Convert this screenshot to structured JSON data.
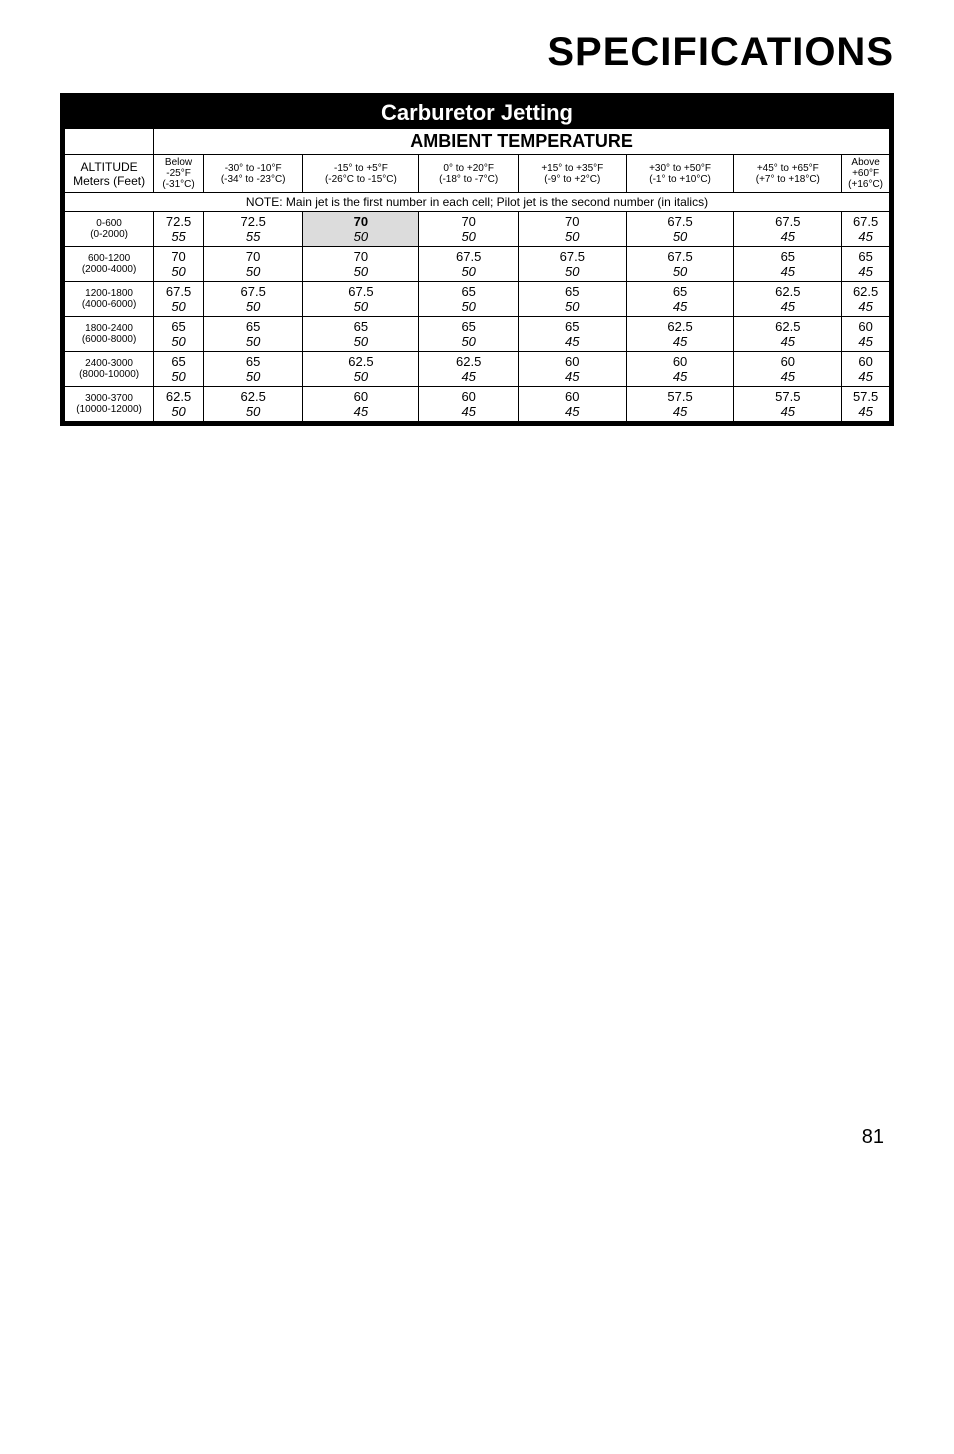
{
  "title": "SPECIFICATIONS",
  "table_title": "Carburetor Jetting",
  "ambient_label": "AMBIENT TEMPERATURE",
  "alt_header_top": "ALTITUDE",
  "alt_header_bot": "Meters (Feet)",
  "note": "NOTE:  Main jet is the first number in each cell; Pilot jet is the second number (in italics)",
  "temp_cols": [
    {
      "top": "Below",
      "mid": "-25°F",
      "bot": "(-31°C)"
    },
    {
      "top": "-30° to -10°F",
      "mid": "(-34° to -23°C)",
      "bot": ""
    },
    {
      "top": "-15° to +5°F",
      "mid": "(-26°C to -15°C)",
      "bot": ""
    },
    {
      "top": "0° to +20°F",
      "mid": "(-18° to -7°C)",
      "bot": ""
    },
    {
      "top": "+15° to +35°F",
      "mid": "(-9° to +2°C)",
      "bot": ""
    },
    {
      "top": "+30° to +50°F",
      "mid": "(-1° to +10°C)",
      "bot": ""
    },
    {
      "top": "+45° to +65°F",
      "mid": "(+7° to +18°C)",
      "bot": ""
    },
    {
      "top": "Above",
      "mid": "+60°F",
      "bot": "(+16°C)"
    }
  ],
  "rows": [
    {
      "alt_top": "0-600",
      "alt_bot": "(0-2000)",
      "cells": [
        {
          "m": "72.5",
          "p": "55"
        },
        {
          "m": "72.5",
          "p": "55"
        },
        {
          "m": "70",
          "p": "50",
          "hl": true
        },
        {
          "m": "70",
          "p": "50"
        },
        {
          "m": "70",
          "p": "50"
        },
        {
          "m": "67.5",
          "p": "50"
        },
        {
          "m": "67.5",
          "p": "45"
        },
        {
          "m": "67.5",
          "p": "45"
        }
      ]
    },
    {
      "alt_top": "600-1200",
      "alt_bot": "(2000-4000)",
      "cells": [
        {
          "m": "70",
          "p": "50"
        },
        {
          "m": "70",
          "p": "50"
        },
        {
          "m": "70",
          "p": "50"
        },
        {
          "m": "67.5",
          "p": "50"
        },
        {
          "m": "67.5",
          "p": "50"
        },
        {
          "m": "67.5",
          "p": "50"
        },
        {
          "m": "65",
          "p": "45"
        },
        {
          "m": "65",
          "p": "45"
        }
      ]
    },
    {
      "alt_top": "1200-1800",
      "alt_bot": "(4000-6000)",
      "cells": [
        {
          "m": "67.5",
          "p": "50"
        },
        {
          "m": "67.5",
          "p": "50"
        },
        {
          "m": "67.5",
          "p": "50"
        },
        {
          "m": "65",
          "p": "50"
        },
        {
          "m": "65",
          "p": "50"
        },
        {
          "m": "65",
          "p": "45"
        },
        {
          "m": "62.5",
          "p": "45"
        },
        {
          "m": "62.5",
          "p": "45"
        }
      ]
    },
    {
      "alt_top": "1800-2400",
      "alt_bot": "(6000-8000)",
      "cells": [
        {
          "m": "65",
          "p": "50"
        },
        {
          "m": "65",
          "p": "50"
        },
        {
          "m": "65",
          "p": "50"
        },
        {
          "m": "65",
          "p": "50"
        },
        {
          "m": "65",
          "p": "45"
        },
        {
          "m": "62.5",
          "p": "45"
        },
        {
          "m": "62.5",
          "p": "45"
        },
        {
          "m": "60",
          "p": "45"
        }
      ]
    },
    {
      "alt_top": "2400-3000",
      "alt_bot": "(8000-10000)",
      "cells": [
        {
          "m": "65",
          "p": "50"
        },
        {
          "m": "65",
          "p": "50"
        },
        {
          "m": "62.5",
          "p": "50"
        },
        {
          "m": "62.5",
          "p": "45"
        },
        {
          "m": "60",
          "p": "45"
        },
        {
          "m": "60",
          "p": "45"
        },
        {
          "m": "60",
          "p": "45"
        },
        {
          "m": "60",
          "p": "45"
        }
      ]
    },
    {
      "alt_top": "3000-3700",
      "alt_bot": "(10000-12000)",
      "cells": [
        {
          "m": "62.5",
          "p": "50"
        },
        {
          "m": "62.5",
          "p": "50"
        },
        {
          "m": "60",
          "p": "45"
        },
        {
          "m": "60",
          "p": "45"
        },
        {
          "m": "60",
          "p": "45"
        },
        {
          "m": "57.5",
          "p": "45"
        },
        {
          "m": "57.5",
          "p": "45"
        },
        {
          "m": "57.5",
          "p": "45"
        }
      ]
    }
  ],
  "page_number": "81",
  "col_widths_pct": [
    11,
    6,
    12,
    14,
    12,
    13,
    13,
    13,
    6
  ]
}
